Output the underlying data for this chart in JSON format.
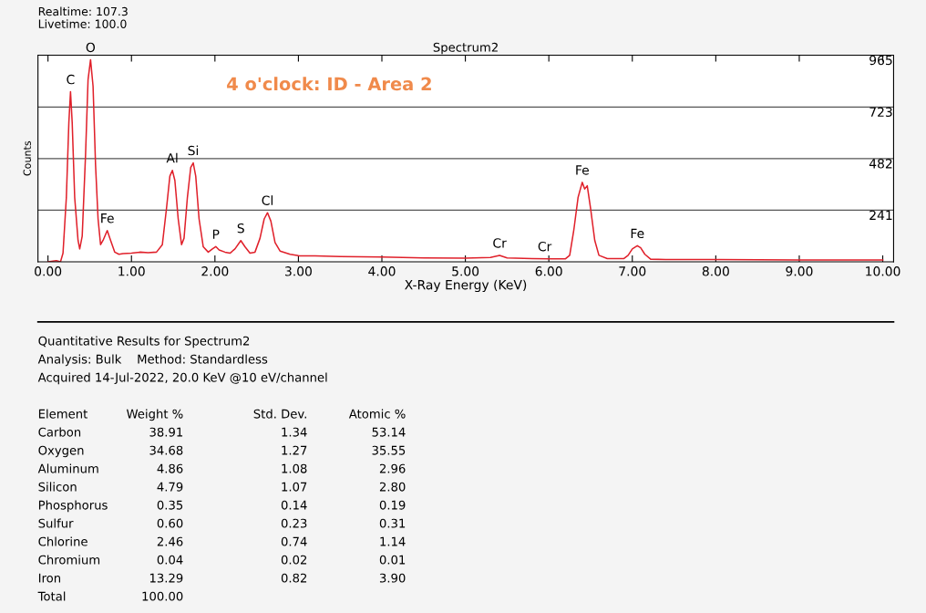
{
  "chart_data": [
    {
      "type": "line",
      "title": "Spectrum2",
      "subtitle": "4 o'clock: ID - Area 2",
      "xlabel": "X-Ray Energy (KeV)",
      "ylabel": "Counts",
      "x": [
        0.0,
        0.1,
        0.15,
        0.18,
        0.22,
        0.25,
        0.27,
        0.29,
        0.32,
        0.36,
        0.38,
        0.41,
        0.45,
        0.48,
        0.51,
        0.54,
        0.57,
        0.6,
        0.63,
        0.66,
        0.71,
        0.75,
        0.8,
        0.85,
        0.9,
        1.0,
        1.1,
        1.2,
        1.3,
        1.37,
        1.42,
        1.46,
        1.49,
        1.52,
        1.56,
        1.6,
        1.63,
        1.67,
        1.71,
        1.74,
        1.77,
        1.81,
        1.86,
        1.92,
        1.97,
        2.01,
        2.05,
        2.12,
        2.18,
        2.24,
        2.31,
        2.36,
        2.42,
        2.48,
        2.54,
        2.59,
        2.63,
        2.67,
        2.72,
        2.78,
        2.9,
        3.0,
        3.2,
        3.5,
        4.0,
        4.5,
        5.0,
        5.3,
        5.41,
        5.5,
        5.8,
        6.0,
        6.2,
        6.25,
        6.3,
        6.35,
        6.4,
        6.43,
        6.46,
        6.5,
        6.55,
        6.6,
        6.7,
        6.9,
        6.95,
        7.0,
        7.06,
        7.1,
        7.15,
        7.22,
        7.4,
        8.0,
        8.5,
        9.0,
        9.5,
        10.0
      ],
      "series": [
        {
          "color": "#e0202a",
          "values": [
            0,
            5,
            0,
            40,
            300,
            650,
            794,
            650,
            300,
            100,
            60,
            120,
            500,
            850,
            944,
            820,
            450,
            200,
            80,
            100,
            146,
            100,
            45,
            35,
            38,
            40,
            45,
            42,
            45,
            80,
            250,
            400,
            427,
            380,
            200,
            80,
            110,
            300,
            440,
            462,
            400,
            200,
            70,
            45,
            60,
            71,
            55,
            45,
            40,
            60,
            99,
            70,
            40,
            45,
            110,
            200,
            229,
            190,
            90,
            50,
            35,
            28,
            27,
            24,
            22,
            18,
            17,
            20,
            30,
            18,
            15,
            14,
            14,
            30,
            150,
            300,
            371,
            340,
            355,
            250,
            100,
            30,
            15,
            15,
            30,
            60,
            75,
            65,
            35,
            12,
            10,
            10,
            9,
            8,
            8,
            8
          ]
        }
      ],
      "xlim": [
        -0.12,
        10.13
      ],
      "xticks": [
        {
          "value": 0,
          "label": "0.00"
        },
        {
          "value": 1,
          "label": "1.00"
        },
        {
          "value": 2,
          "label": "2.00"
        },
        {
          "value": 3,
          "label": "3.00"
        },
        {
          "value": 4,
          "label": "4.00"
        },
        {
          "value": 5,
          "label": "5.00"
        },
        {
          "value": 6,
          "label": "6.00"
        },
        {
          "value": 7,
          "label": "7.00"
        },
        {
          "value": 8,
          "label": "8.00"
        },
        {
          "value": 9,
          "label": "9.00"
        },
        {
          "value": 10,
          "label": "10.00"
        }
      ],
      "ylim": [
        0,
        965
      ],
      "yticks": [
        241,
        482,
        723,
        965
      ],
      "grid": "y",
      "legend": false,
      "marker": "none",
      "line_style": "solid",
      "annotations": [
        "Realtime: 107.3",
        "Livetime: 100.0",
        {
          "text": "C",
          "x": 0.27,
          "y": 794
        },
        {
          "text": "O",
          "x": 0.51,
          "y": 944
        },
        {
          "text": "Fe",
          "x": 0.71,
          "y": 146
        },
        {
          "text": "Al",
          "x": 1.49,
          "y": 427
        },
        {
          "text": "Si",
          "x": 1.74,
          "y": 462
        },
        {
          "text": "P",
          "x": 2.01,
          "y": 71
        },
        {
          "text": "S",
          "x": 2.31,
          "y": 99
        },
        {
          "text": "Cl",
          "x": 2.63,
          "y": 229
        },
        {
          "text": "Cr",
          "x": 5.41,
          "y": 30
        },
        {
          "text": "Cr",
          "x": 5.95,
          "y": 14
        },
        {
          "text": "Fe",
          "x": 6.4,
          "y": 371
        },
        {
          "text": "Fe",
          "x": 7.06,
          "y": 75
        }
      ]
    },
    {
      "type": "other",
      "annotations": [
        "Quantitative Results for Spectrum2",
        "Analysis: Bulk    Method: Standardless",
        "Acquired 14-Jul-2022, 20.0 KeV @10 eV/channel",
        "Element\tWeight %\tStd. Dev.\tAtomic %",
        "Carbon\t38.91\t1.34\t53.14",
        "Oxygen\t34.68\t1.27\t35.55",
        "Aluminum\t4.86\t1.08\t2.96",
        "Silicon\t4.79\t1.07\t2.80",
        "Phosphorus\t0.35\t0.14\t0.19",
        "Sulfur\t0.60\t0.23\t0.31",
        "Chlorine\t2.46\t0.74\t1.14",
        "Chromium\t0.04\t0.02\t0.01",
        "Iron\t13.29\t0.82\t3.90",
        "Total\t100.00"
      ]
    }
  ]
}
